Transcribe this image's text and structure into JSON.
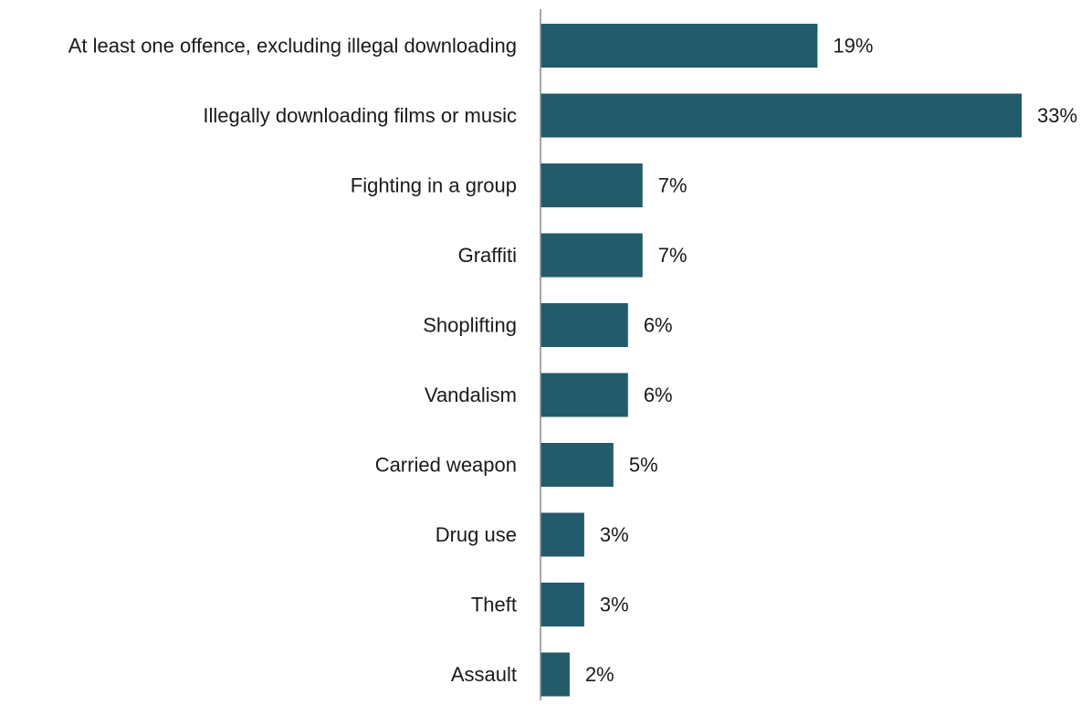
{
  "chart_data": {
    "type": "bar",
    "orientation": "horizontal",
    "title": "",
    "xlabel": "",
    "ylabel": "",
    "categories": [
      "At least one offence, excluding illegal downloading",
      "Illegally downloading films or music",
      "Fighting in a group",
      "Graffiti",
      "Shoplifting",
      "Vandalism",
      "Carried weapon",
      "Drug use",
      "Theft",
      "Assault"
    ],
    "values": [
      19,
      33,
      7,
      7,
      6,
      6,
      5,
      3,
      3,
      2
    ],
    "value_labels": [
      "19%",
      "33%",
      "7%",
      "7%",
      "6%",
      "6%",
      "5%",
      "3%",
      "3%",
      "2%"
    ],
    "unit": "%",
    "xlim": [
      0,
      35
    ],
    "grid": false,
    "legend": "none",
    "bar_color": "#245B6A",
    "axis_color": "#8c8c8c"
  }
}
